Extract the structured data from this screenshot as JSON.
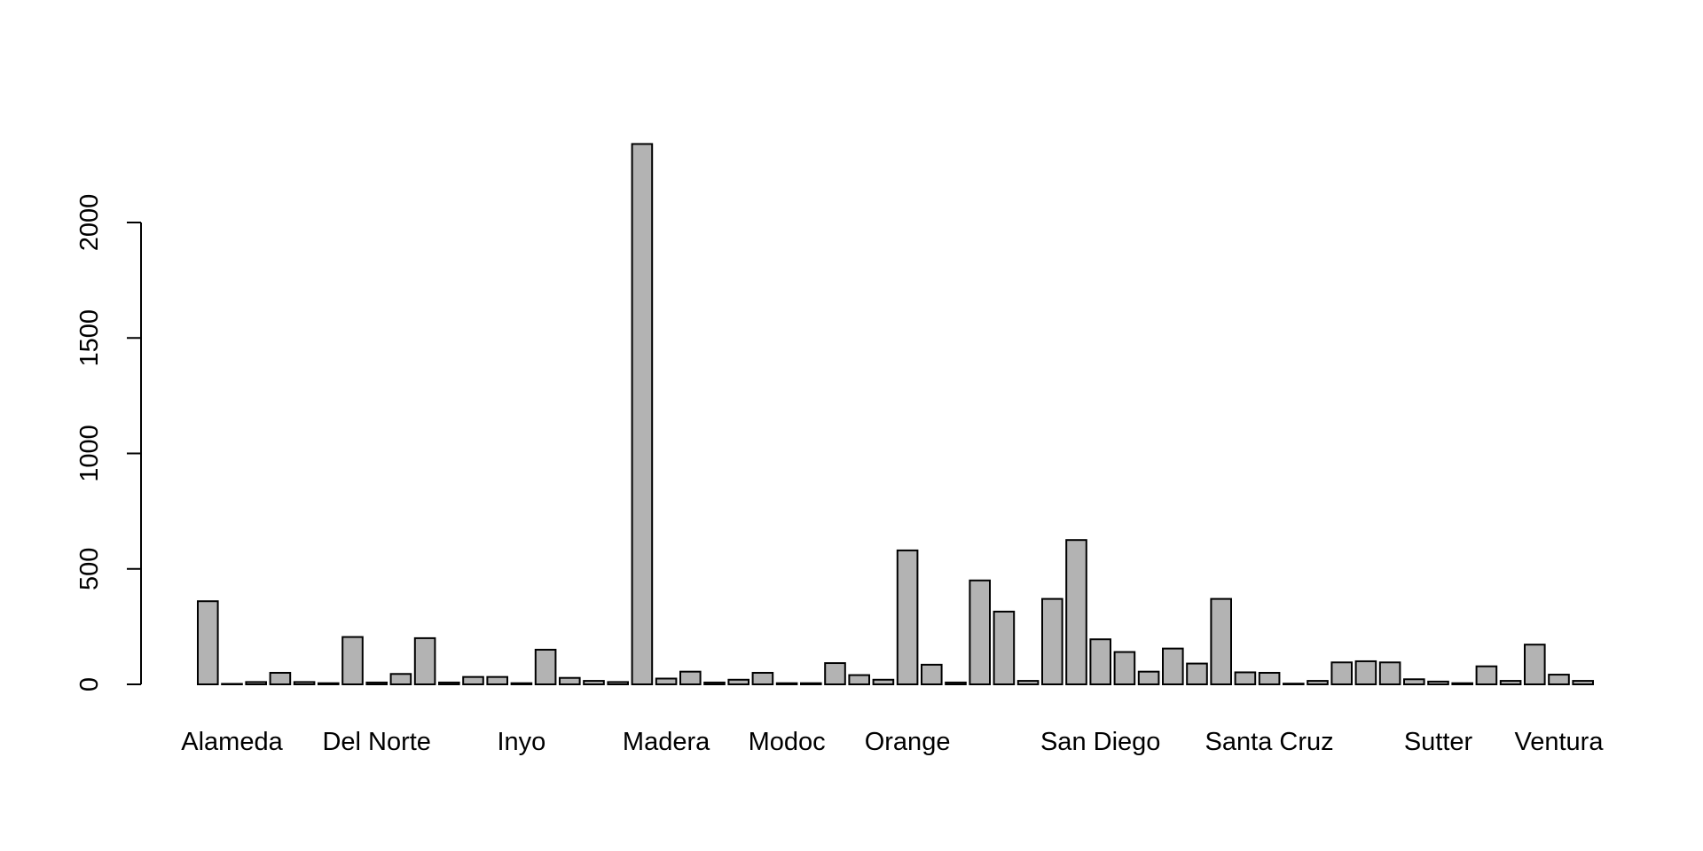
{
  "chart_data": {
    "type": "bar",
    "title": "",
    "xlabel": "",
    "ylabel": "",
    "ylim": [
      0,
      2300
    ],
    "yticks": [
      0,
      500,
      1000,
      1500,
      2000
    ],
    "grid": false,
    "legend": "none",
    "bar_color": "#b3b3b3",
    "category_labels": [
      "Alameda",
      "Del Norte",
      "Inyo",
      "Madera",
      "Modoc",
      "Orange",
      "San Diego",
      "Santa Cruz",
      "Sutter",
      "Ventura"
    ],
    "label_positions": [
      1,
      7,
      13,
      19,
      24,
      29,
      37,
      44,
      51,
      56
    ],
    "values": [
      360,
      2,
      10,
      50,
      10,
      5,
      205,
      8,
      45,
      200,
      8,
      32,
      32,
      5,
      150,
      28,
      15,
      10,
      2340,
      25,
      55,
      8,
      20,
      50,
      5,
      5,
      92,
      40,
      20,
      580,
      85,
      8,
      450,
      315,
      15,
      370,
      625,
      195,
      140,
      55,
      155,
      90,
      370,
      52,
      50,
      3,
      15,
      95,
      100,
      95,
      22,
      12,
      5,
      78,
      15,
      172,
      42,
      15
    ]
  }
}
